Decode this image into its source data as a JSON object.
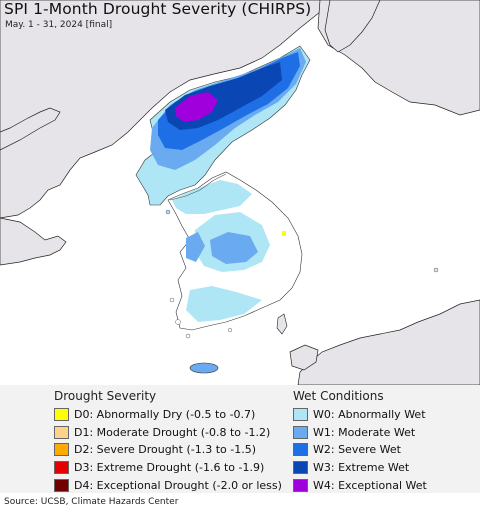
{
  "title": "SPI 1-Month Drought Severity (CHIRPS)",
  "subtitle": "May. 1 - 31, 2024 [final]",
  "legend": {
    "drought_heading": "Drought Severity",
    "drought": [
      {
        "label": "D0: Abnormally Dry (-0.5 to -0.7)",
        "color": "#ffff00"
      },
      {
        "label": "D1: Moderate Drought (-0.8 to -1.2)",
        "color": "#fcd38d"
      },
      {
        "label": "D2: Severe Drought (-1.3 to -1.5)",
        "color": "#ffaa00"
      },
      {
        "label": "D3: Extreme Drought (-1.6 to -1.9)",
        "color": "#e60000"
      },
      {
        "label": "D4: Exceptional Drought (-2.0 or less)",
        "color": "#730000"
      }
    ],
    "wet_heading": "Wet Conditions",
    "wet": [
      {
        "label": "W0: Abnormally Wet",
        "color": "#aee6f5"
      },
      {
        "label": "W1: Moderate Wet",
        "color": "#6aaaf0"
      },
      {
        "label": "W2: Severe Wet",
        "color": "#1e6ee6"
      },
      {
        "label": "W3: Extreme Wet",
        "color": "#0a46b4"
      },
      {
        "label": "W4: Exceptional Wet",
        "color": "#a000dc"
      }
    ]
  },
  "source": "Source: UCSB, Climate Hazards Center",
  "colors": {
    "ocean": "#ffffff",
    "outside_land": "#e8e6ea",
    "normal_land": "#ffffff"
  }
}
